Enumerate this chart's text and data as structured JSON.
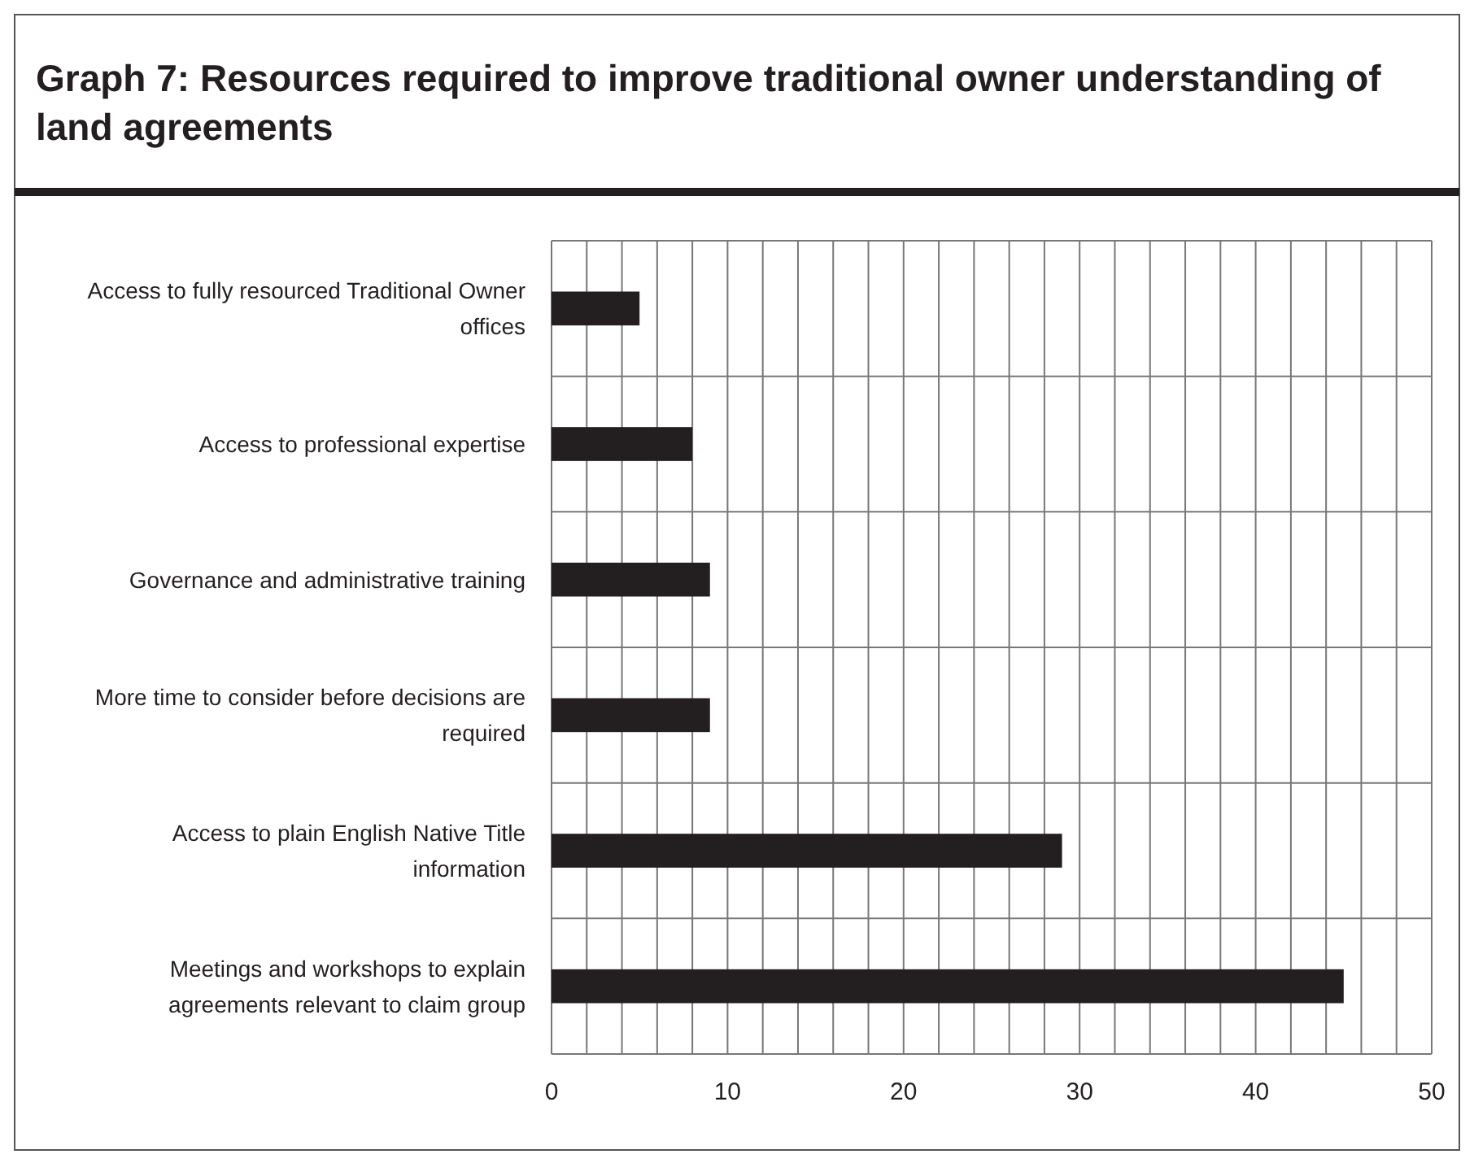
{
  "chart_data": {
    "type": "bar",
    "orientation": "horizontal",
    "title": "Graph 7: Resources required to improve traditional owner understanding of land agreements",
    "categories": [
      "Access to fully resourced Traditional Owner offices",
      "Access to professional expertise",
      "Governance and administrative training",
      "More time to consider before decisions are required",
      "Access to plain English Native Title information",
      "Meetings and workshops to explain agreements relevant to claim group"
    ],
    "values": [
      5,
      8,
      9,
      9,
      29,
      45
    ],
    "color": "#231f20",
    "xlim": [
      0,
      50
    ],
    "xticks": [
      0,
      {
        "value": 2,
        "label": null
      },
      {
        "value": 4,
        "label": null
      },
      {
        "value": 6,
        "label": null
      },
      {
        "value": 8,
        "label": null
      },
      10,
      {
        "value": 12,
        "label": null
      },
      {
        "value": 14,
        "label": null
      },
      {
        "value": 16,
        "label": null
      },
      {
        "value": 18,
        "label": null
      },
      20,
      {
        "value": 22,
        "label": null
      },
      {
        "value": 24,
        "label": null
      },
      {
        "value": 26,
        "label": null
      },
      {
        "value": 28,
        "label": null
      },
      30,
      {
        "value": 32,
        "label": null
      },
      {
        "value": 34,
        "label": null
      },
      {
        "value": 36,
        "label": null
      },
      {
        "value": 38,
        "label": null
      },
      40,
      {
        "value": 42,
        "label": null
      },
      {
        "value": 44,
        "label": null
      },
      {
        "value": 46,
        "label": null
      },
      {
        "value": 48,
        "label": null
      },
      50
    ],
    "grid": true
  }
}
